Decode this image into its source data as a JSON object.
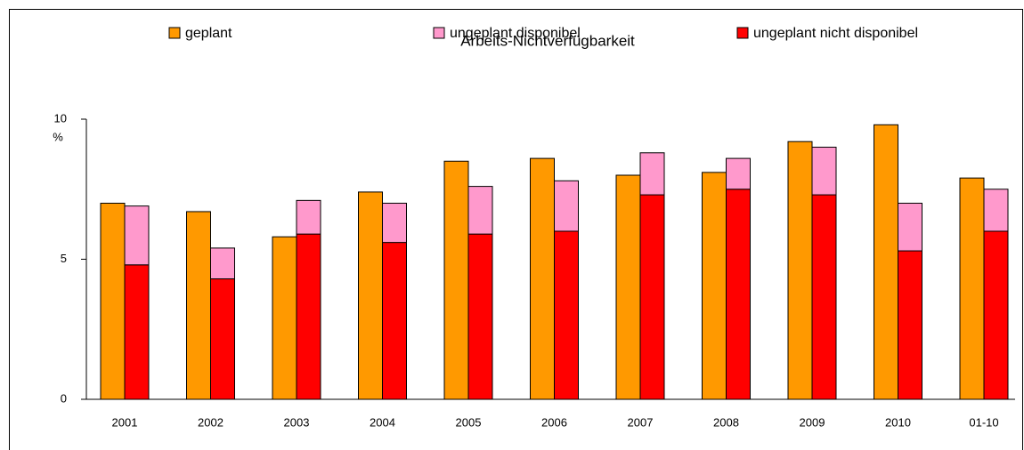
{
  "chart_data": {
    "type": "bar",
    "title": "Arbeits-Nichtverfügbarkeit",
    "ylabel": "%",
    "categories": [
      "2001",
      "2002",
      "2003",
      "2004",
      "2005",
      "2006",
      "2007",
      "2008",
      "2009",
      "2010",
      "01-10"
    ],
    "series": [
      {
        "name": "geplant",
        "color": "#ff9900",
        "values": [
          7.0,
          6.7,
          5.8,
          7.4,
          8.5,
          8.6,
          8.0,
          8.1,
          9.2,
          9.8,
          7.9
        ]
      },
      {
        "name": "ungeplant disponibel",
        "color": "#ff99cc",
        "values": [
          2.1,
          1.1,
          1.2,
          1.4,
          1.7,
          1.8,
          1.5,
          1.1,
          1.7,
          1.7,
          1.5
        ]
      },
      {
        "name": "ungeplant nicht disponibel",
        "color": "#ff0000",
        "values": [
          4.8,
          4.3,
          5.9,
          5.6,
          5.9,
          6.0,
          7.3,
          7.5,
          7.3,
          5.3,
          6.0
        ]
      }
    ],
    "ylim": [
      0,
      10
    ],
    "yticks": [
      0,
      5,
      10
    ],
    "legend": "top"
  }
}
